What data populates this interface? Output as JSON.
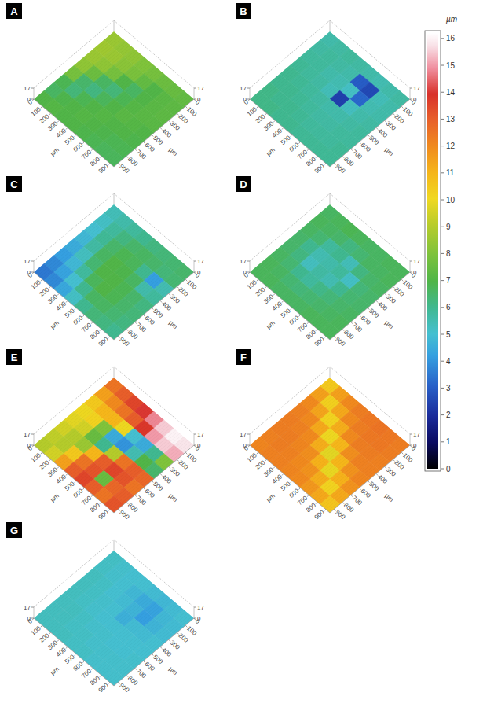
{
  "chart_data": {
    "type": "surface",
    "colorbar": {
      "range": [
        0,
        16.2
      ],
      "ticks": [
        0,
        1,
        2,
        3,
        4,
        5,
        6,
        7,
        8,
        9,
        10,
        11,
        12,
        13,
        14,
        15,
        16
      ],
      "label": "µm"
    },
    "panels": [
      {
        "title": "A",
        "xlabel": "µm",
        "ylabel": "µm",
        "xlim": [
          0,
          950
        ],
        "ylim": [
          0,
          950
        ],
        "xticks": [
          0,
          100,
          200,
          300,
          400,
          500,
          600,
          700,
          800,
          900
        ],
        "yticks": [
          0,
          100,
          200,
          300,
          400,
          500,
          600,
          700,
          800,
          900
        ],
        "zlim": [
          0,
          17
        ],
        "zticks": [
          0,
          17
        ],
        "cells": [
          [
            8.5,
            8.4,
            8.3,
            8.0,
            7.8,
            7.6,
            7.5,
            7.4
          ],
          [
            8.6,
            8.5,
            8.2,
            7.9,
            7.4,
            7.0,
            7.2,
            7.3
          ],
          [
            8.5,
            8.3,
            7.8,
            7.0,
            6.6,
            7.0,
            7.2,
            7.3
          ],
          [
            8.3,
            7.6,
            6.6,
            6.3,
            6.8,
            7.1,
            7.2,
            7.2
          ],
          [
            7.8,
            6.5,
            6.2,
            6.7,
            7.0,
            7.2,
            7.1,
            7.0
          ],
          [
            6.8,
            6.3,
            6.8,
            7.0,
            7.1,
            7.0,
            7.0,
            6.9
          ],
          [
            6.6,
            6.9,
            7.0,
            7.1,
            7.0,
            6.9,
            6.8,
            6.8
          ],
          [
            7.0,
            7.1,
            7.0,
            7.0,
            6.9,
            6.8,
            6.7,
            6.7
          ]
        ]
      },
      {
        "title": "B",
        "xlabel": "µm",
        "ylabel": "µm",
        "xlim": [
          0,
          950
        ],
        "ylim": [
          0,
          950
        ],
        "xticks": [
          0,
          100,
          200,
          300,
          400,
          500,
          600,
          700,
          800,
          900
        ],
        "yticks": [
          0,
          100,
          200,
          300,
          400,
          500,
          600,
          700,
          800,
          900
        ],
        "zlim": [
          0,
          17
        ],
        "zticks": [
          0,
          17
        ],
        "cells": [
          [
            5.6,
            5.7,
            5.8,
            5.7,
            5.6,
            5.5,
            5.6,
            5.7
          ],
          [
            5.7,
            5.8,
            5.7,
            5.6,
            3.0,
            2.6,
            5.4,
            5.6
          ],
          [
            5.8,
            5.8,
            5.6,
            5.5,
            5.2,
            3.2,
            5.5,
            5.6
          ],
          [
            5.9,
            5.8,
            5.7,
            5.4,
            2.4,
            5.3,
            5.6,
            5.7
          ],
          [
            6.0,
            5.9,
            5.8,
            5.7,
            5.6,
            5.6,
            5.7,
            5.8
          ],
          [
            6.0,
            6.0,
            5.9,
            5.8,
            5.7,
            5.7,
            5.8,
            5.8
          ],
          [
            6.1,
            6.0,
            6.0,
            5.9,
            5.8,
            5.8,
            5.8,
            5.9
          ],
          [
            6.1,
            6.1,
            6.0,
            6.0,
            5.9,
            5.9,
            5.9,
            5.9
          ]
        ]
      },
      {
        "title": "C",
        "xlabel": "µm",
        "ylabel": "µm",
        "xlim": [
          0,
          950
        ],
        "ylim": [
          0,
          950
        ],
        "xticks": [
          0,
          100,
          200,
          300,
          400,
          500,
          600,
          700,
          800,
          900
        ],
        "yticks": [
          0,
          100,
          200,
          300,
          400,
          500,
          600,
          700,
          800,
          900
        ],
        "zlim": [
          0,
          17
        ],
        "zticks": [
          0,
          17
        ],
        "cells": [
          [
            5.4,
            5.6,
            5.8,
            6.0,
            6.2,
            6.3,
            6.4,
            6.5
          ],
          [
            5.2,
            5.8,
            6.2,
            6.5,
            6.6,
            6.5,
            6.3,
            6.4
          ],
          [
            5.0,
            5.9,
            6.5,
            6.8,
            6.7,
            6.0,
            4.2,
            5.5
          ],
          [
            4.8,
            5.7,
            6.6,
            7.0,
            6.9,
            6.6,
            5.6,
            5.8
          ],
          [
            4.5,
            5.3,
            6.4,
            7.0,
            7.0,
            6.8,
            6.5,
            6.2
          ],
          [
            4.2,
            4.8,
            5.8,
            6.7,
            7.0,
            6.8,
            6.5,
            6.3
          ],
          [
            3.8,
            4.3,
            5.0,
            6.0,
            6.6,
            6.6,
            6.4,
            6.2
          ],
          [
            3.5,
            3.8,
            4.4,
            5.2,
            6.0,
            6.3,
            6.2,
            6.0
          ]
        ]
      },
      {
        "title": "D",
        "xlabel": "µm",
        "ylabel": "µm",
        "xlim": [
          0,
          950
        ],
        "ylim": [
          0,
          950
        ],
        "xticks": [
          0,
          100,
          200,
          300,
          400,
          500,
          600,
          700,
          800,
          900
        ],
        "yticks": [
          0,
          100,
          200,
          300,
          400,
          500,
          600,
          700,
          800,
          900
        ],
        "zlim": [
          0,
          17
        ],
        "zticks": [
          0,
          17
        ],
        "cells": [
          [
            6.6,
            6.7,
            6.8,
            6.7,
            6.6,
            6.6,
            6.7,
            6.7
          ],
          [
            6.7,
            6.6,
            6.5,
            6.2,
            6.4,
            6.6,
            6.6,
            6.7
          ],
          [
            6.6,
            6.4,
            5.8,
            6.0,
            5.4,
            6.2,
            6.5,
            6.6
          ],
          [
            6.5,
            6.0,
            5.5,
            5.6,
            5.8,
            5.2,
            6.3,
            6.5
          ],
          [
            6.5,
            6.2,
            5.3,
            5.7,
            5.5,
            6.0,
            6.4,
            6.5
          ],
          [
            6.6,
            6.4,
            6.0,
            5.8,
            6.1,
            6.3,
            6.5,
            6.6
          ],
          [
            6.7,
            6.6,
            6.4,
            6.3,
            6.4,
            6.5,
            6.6,
            6.7
          ],
          [
            6.7,
            6.7,
            6.6,
            6.6,
            6.6,
            6.7,
            6.7,
            6.7
          ]
        ]
      },
      {
        "title": "E",
        "xlabel": "µm",
        "ylabel": "µm",
        "xlim": [
          0,
          950
        ],
        "ylim": [
          0,
          950
        ],
        "xticks": [
          0,
          100,
          200,
          300,
          400,
          500,
          600,
          700,
          800,
          900
        ],
        "yticks": [
          0,
          100,
          200,
          300,
          400,
          500,
          600,
          700,
          800,
          900
        ],
        "zlim": [
          0,
          17
        ],
        "zticks": [
          0,
          17
        ],
        "cells": [
          [
            12.5,
            13.0,
            13.5,
            14.0,
            14.8,
            15.5,
            16.0,
            15.8
          ],
          [
            11.5,
            12.0,
            12.5,
            13.0,
            13.8,
            15.0,
            15.5,
            15.2
          ],
          [
            10.5,
            11.0,
            11.0,
            10.0,
            5.0,
            4.5,
            6.0,
            8.0
          ],
          [
            10.0,
            10.2,
            8.0,
            4.5,
            4.0,
            5.5,
            7.0,
            6.5
          ],
          [
            9.8,
            9.5,
            7.5,
            6.0,
            9.0,
            12.5,
            13.0,
            12.8
          ],
          [
            9.5,
            9.0,
            8.5,
            11.0,
            13.0,
            13.5,
            13.2,
            12.5
          ],
          [
            9.2,
            9.0,
            10.5,
            12.5,
            13.2,
            7.5,
            12.8,
            13.0
          ],
          [
            9.0,
            9.5,
            11.5,
            13.0,
            13.5,
            13.0,
            12.5,
            13.2
          ]
        ]
      },
      {
        "title": "F",
        "xlabel": "µm",
        "ylabel": "µm",
        "xlim": [
          0,
          950
        ],
        "ylim": [
          0,
          950
        ],
        "xticks": [
          0,
          100,
          200,
          300,
          400,
          500,
          600,
          700,
          800,
          900
        ],
        "yticks": [
          0,
          100,
          200,
          300,
          400,
          500,
          600,
          700,
          800,
          900
        ],
        "zlim": [
          0,
          17
        ],
        "zticks": [
          0,
          17
        ],
        "cells": [
          [
            10.5,
            11.5,
            12.0,
            12.3,
            12.4,
            12.5,
            12.4,
            12.3
          ],
          [
            11.5,
            10.3,
            11.3,
            12.0,
            12.3,
            12.4,
            12.4,
            12.3
          ],
          [
            12.0,
            11.4,
            10.2,
            11.2,
            12.0,
            12.3,
            12.3,
            12.2
          ],
          [
            12.2,
            12.0,
            11.3,
            10.0,
            11.0,
            11.9,
            12.2,
            12.2
          ],
          [
            12.3,
            12.2,
            12.0,
            11.2,
            9.8,
            11.0,
            11.8,
            12.1
          ],
          [
            12.3,
            12.3,
            12.1,
            11.9,
            11.1,
            9.9,
            11.1,
            11.8
          ],
          [
            12.2,
            12.3,
            12.2,
            12.0,
            11.8,
            11.2,
            10.2,
            11.3
          ],
          [
            12.1,
            12.2,
            12.2,
            12.1,
            12.0,
            11.7,
            11.3,
            10.6
          ]
        ]
      },
      {
        "title": "G",
        "xlabel": "µm",
        "ylabel": "µm",
        "xlim": [
          0,
          950
        ],
        "ylim": [
          0,
          950
        ],
        "xticks": [
          0,
          100,
          200,
          300,
          400,
          500,
          600,
          700,
          800,
          900
        ],
        "yticks": [
          0,
          100,
          200,
          300,
          400,
          500,
          600,
          700,
          800,
          900
        ],
        "zlim": [
          0,
          17
        ],
        "zticks": [
          0,
          17
        ],
        "cells": [
          [
            5.2,
            5.1,
            5.0,
            5.0,
            4.9,
            4.8,
            4.9,
            5.0
          ],
          [
            5.2,
            5.1,
            5.0,
            4.8,
            4.5,
            4.3,
            4.8,
            4.9
          ],
          [
            5.3,
            5.2,
            5.0,
            4.9,
            4.7,
            4.2,
            4.7,
            4.9
          ],
          [
            5.3,
            5.2,
            5.1,
            5.0,
            4.6,
            4.9,
            4.9,
            5.0
          ],
          [
            5.3,
            5.2,
            5.1,
            5.0,
            5.0,
            5.0,
            5.0,
            5.0
          ],
          [
            5.3,
            5.3,
            5.2,
            5.1,
            5.1,
            5.0,
            5.0,
            5.1
          ],
          [
            5.3,
            5.3,
            5.2,
            5.2,
            5.1,
            5.1,
            5.1,
            5.1
          ],
          [
            5.3,
            5.3,
            5.3,
            5.2,
            5.2,
            5.1,
            5.1,
            5.1
          ]
        ]
      }
    ]
  }
}
